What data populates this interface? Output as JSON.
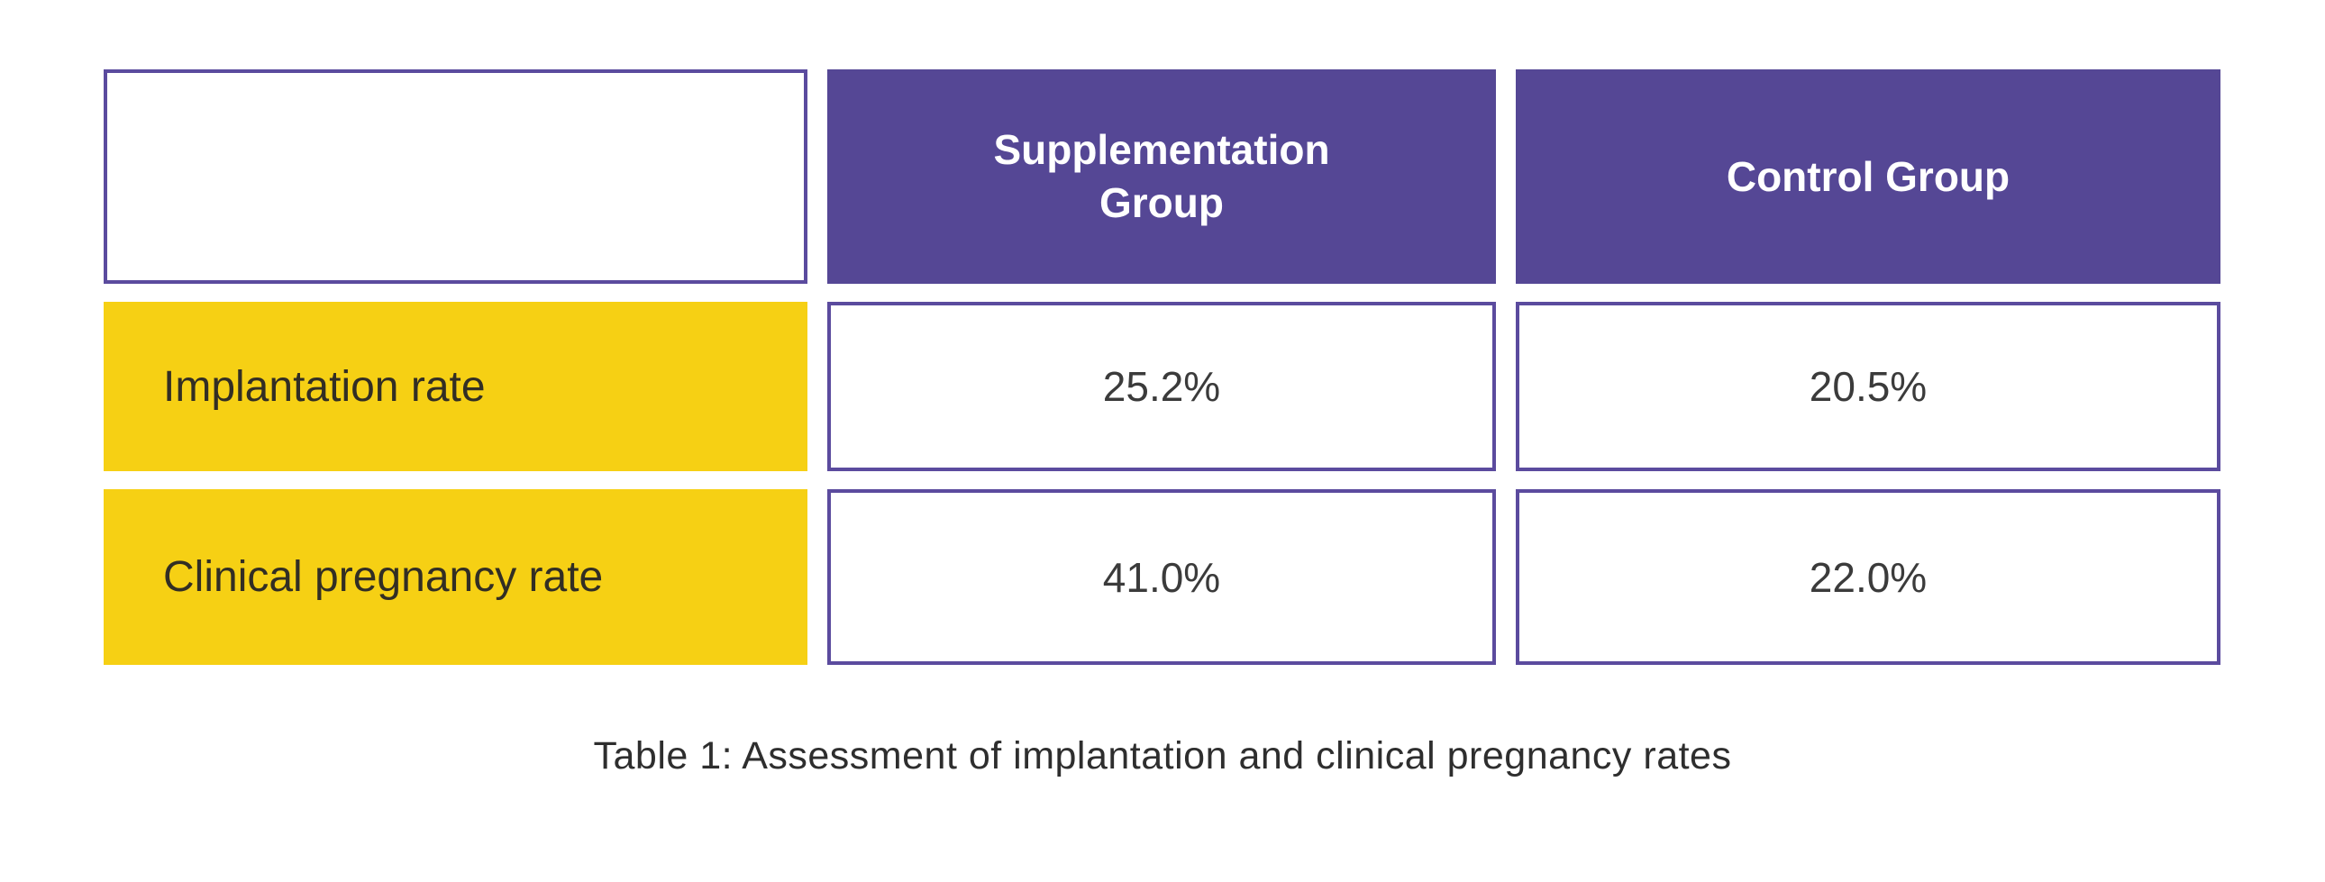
{
  "colors": {
    "header_background": "#554795",
    "cell_border": "#5b4b9e",
    "row_label_background": "#f6d014",
    "header_text": "#ffffff",
    "label_text": "#322e24",
    "value_text": "#3b3b3b",
    "page_background": "#ffffff"
  },
  "table": {
    "columns": [
      "",
      "Supplementation Group",
      "Control Group"
    ],
    "rows": [
      {
        "label": "Implantation rate",
        "values": [
          "25.2%",
          "20.5%"
        ]
      },
      {
        "label": "Clinical pregnancy rate",
        "values": [
          "41.0%",
          "22.0%"
        ]
      }
    ],
    "caption": "Table 1: Assessment of implantation and clinical pregnancy rates"
  },
  "chart_data": {
    "type": "table",
    "title": "Table 1: Assessment of implantation and clinical pregnancy rates",
    "columns": [
      "Supplementation Group",
      "Control Group"
    ],
    "row_labels": [
      "Implantation rate",
      "Clinical pregnancy rate"
    ],
    "rows": [
      {
        "label": "Implantation rate",
        "values_percent": [
          25.2,
          20.5
        ]
      },
      {
        "label": "Clinical pregnancy rate",
        "values_percent": [
          41.0,
          22.0
        ]
      }
    ],
    "units": "%"
  }
}
